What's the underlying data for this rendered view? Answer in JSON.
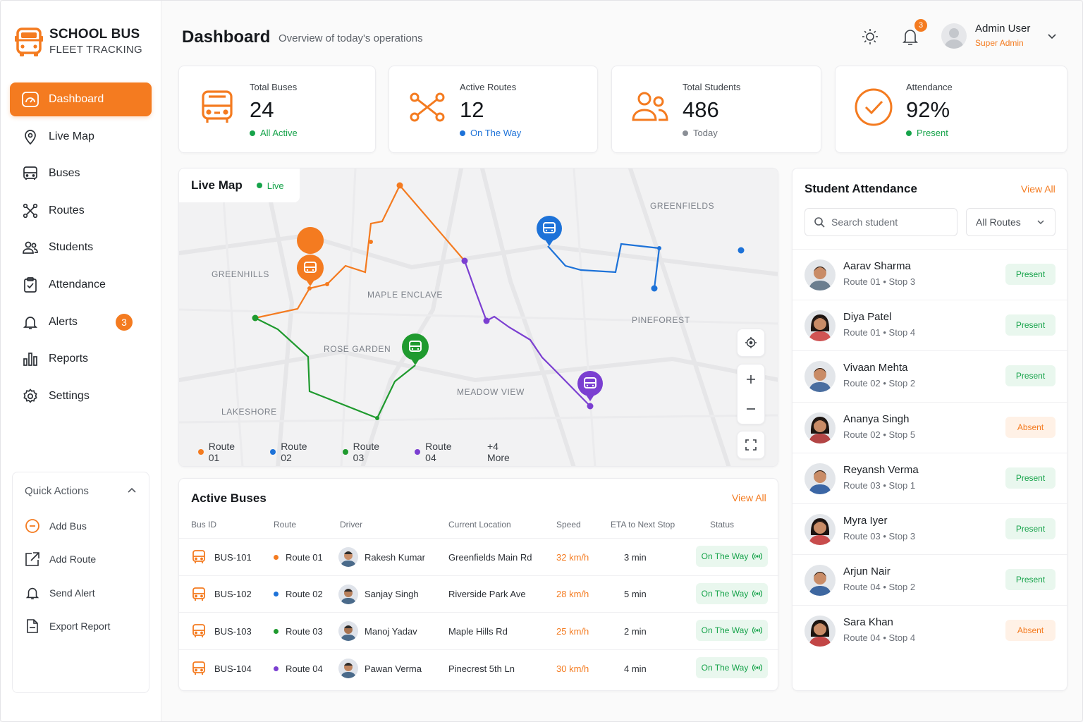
{
  "brand": {
    "title": "SCHOOL BUS",
    "subtitle": "FLEET TRACKING"
  },
  "nav": [
    {
      "label": "Dashboard",
      "icon": "gauge-icon",
      "active": true
    },
    {
      "label": "Live Map",
      "icon": "map-pin-icon"
    },
    {
      "label": "Buses",
      "icon": "bus-icon"
    },
    {
      "label": "Routes",
      "icon": "routes-icon"
    },
    {
      "label": "Students",
      "icon": "users-icon"
    },
    {
      "label": "Attendance",
      "icon": "clipboard-check-icon"
    },
    {
      "label": "Alerts",
      "icon": "bell-icon",
      "badge": "3"
    },
    {
      "label": "Reports",
      "icon": "bar-chart-icon"
    },
    {
      "label": "Settings",
      "icon": "gear-icon"
    }
  ],
  "quick_actions": {
    "title": "Quick Actions",
    "items": [
      {
        "label": "Add Bus",
        "icon": "add-circle-icon"
      },
      {
        "label": "Add Route",
        "icon": "route-edit-icon"
      },
      {
        "label": "Send Alert",
        "icon": "bell-icon"
      },
      {
        "label": "Export Report",
        "icon": "file-icon"
      }
    ]
  },
  "header": {
    "title": "Dashboard",
    "subtitle": "Overview of today's operations",
    "notification_count": "3",
    "user_name": "Admin User",
    "user_role": "Super Admin"
  },
  "stats": [
    {
      "label": "Total Buses",
      "value": "24",
      "status": "All Active",
      "status_color": "#16a34a"
    },
    {
      "label": "Active Routes",
      "value": "12",
      "status": "On The Way",
      "status_color": "#1d72d8"
    },
    {
      "label": "Total Students",
      "value": "486",
      "status": "Today",
      "status_color": "#8a8f96"
    },
    {
      "label": "Attendance",
      "value": "92%",
      "status": "Present",
      "status_color": "#16a34a"
    }
  ],
  "map": {
    "title": "Live Map",
    "live_label": "Live",
    "areas": [
      "GREENFIELDS",
      "GREENHILLS",
      "MAPLE ENCLAVE",
      "PINEFOREST",
      "ROSE GARDEN",
      "MEADOW VIEW",
      "LAKESHORE"
    ],
    "legend": [
      {
        "label": "Route 01",
        "color": "#f47b20"
      },
      {
        "label": "Route 02",
        "color": "#1d72d8"
      },
      {
        "label": "Route 03",
        "color": "#1f9a2e"
      },
      {
        "label": "Route 04",
        "color": "#7b3fd1"
      }
    ],
    "more": "+4 More"
  },
  "active_buses": {
    "title": "Active Buses",
    "view_all": "View All",
    "columns": [
      "Bus ID",
      "Route",
      "Driver",
      "Current Location",
      "Speed",
      "ETA to Next Stop",
      "Status"
    ],
    "rows": [
      {
        "id": "BUS-101",
        "route": "Route 01",
        "route_color": "#f47b20",
        "driver": "Rakesh Kumar",
        "location": "Greenfields Main Rd",
        "speed": "32 km/h",
        "eta": "3 min",
        "status": "On The Way"
      },
      {
        "id": "BUS-102",
        "route": "Route 02",
        "route_color": "#1d72d8",
        "driver": "Sanjay Singh",
        "location": "Riverside Park Ave",
        "speed": "28 km/h",
        "eta": "5 min",
        "status": "On The Way"
      },
      {
        "id": "BUS-103",
        "route": "Route 03",
        "route_color": "#1f9a2e",
        "driver": "Manoj Yadav",
        "location": "Maple Hills Rd",
        "speed": "25 km/h",
        "eta": "2 min",
        "status": "On The Way"
      },
      {
        "id": "BUS-104",
        "route": "Route 04",
        "route_color": "#7b3fd1",
        "driver": "Pawan Verma",
        "location": "Pinecrest 5th Ln",
        "speed": "30 km/h",
        "eta": "4 min",
        "status": "On The Way"
      }
    ]
  },
  "attendance": {
    "title": "Student Attendance",
    "view_all": "View All",
    "search_placeholder": "Search student",
    "filter": "All Routes",
    "students": [
      {
        "name": "Aarav Sharma",
        "route": "Route 01 • Stop 3",
        "status": "Present"
      },
      {
        "name": "Diya Patel",
        "route": "Route 01 • Stop 4",
        "status": "Present"
      },
      {
        "name": "Vivaan Mehta",
        "route": "Route 02 • Stop 2",
        "status": "Present"
      },
      {
        "name": "Ananya Singh",
        "route": "Route 02 • Stop 5",
        "status": "Absent"
      },
      {
        "name": "Reyansh Verma",
        "route": "Route 03 • Stop 1",
        "status": "Present"
      },
      {
        "name": "Myra Iyer",
        "route": "Route 03 • Stop 3",
        "status": "Present"
      },
      {
        "name": "Arjun Nair",
        "route": "Route 04 • Stop 2",
        "status": "Present"
      },
      {
        "name": "Sara Khan",
        "route": "Route 04 • Stop 4",
        "status": "Absent"
      }
    ]
  },
  "colors": {
    "accent": "#f47b20",
    "green": "#16a34a",
    "blue": "#1d72d8",
    "route3": "#1f9a2e",
    "purple": "#7b3fd1"
  }
}
